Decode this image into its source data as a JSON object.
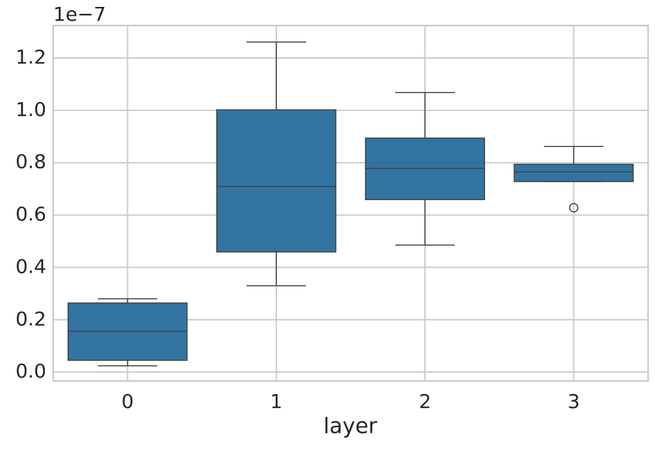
{
  "chart_data": {
    "type": "box",
    "x_label": "layer",
    "y_offset_label": "1e−7",
    "categories": [
      "0",
      "1",
      "2",
      "3"
    ],
    "whislo": [
      0.024,
      0.33,
      0.485,
      0.728
    ],
    "q1": [
      0.045,
      0.459,
      0.659,
      0.728
    ],
    "med": [
      0.156,
      0.709,
      0.778,
      0.765
    ],
    "q3": [
      0.264,
      1.002,
      0.894,
      0.794
    ],
    "whishi": [
      0.28,
      1.261,
      1.068,
      0.862
    ],
    "fliers": [
      [],
      [],
      [],
      [
        0.628
      ]
    ],
    "color": "#3274a1",
    "line_color": "#3f3f3f",
    "ylim": [
      -0.034,
      1.324
    ],
    "yticks": [
      {
        "value": 0,
        "label": "0.0"
      },
      0.2,
      0.4,
      0.6,
      0.8,
      {
        "value": 1,
        "label": "1.0"
      },
      1.2
    ],
    "grid": true
  }
}
